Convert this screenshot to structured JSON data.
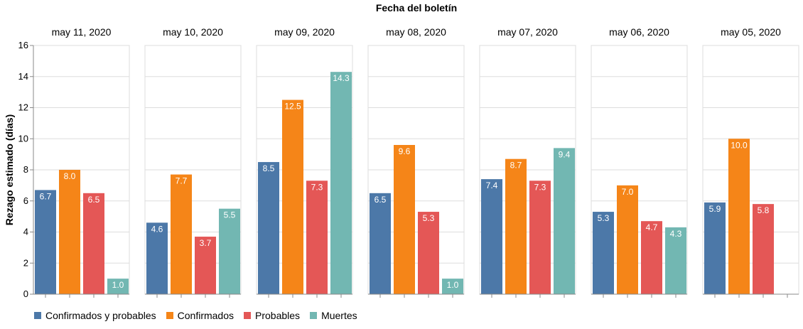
{
  "chart_data": {
    "type": "bar",
    "title": "Fecha del boletín",
    "ylabel": "Rezago estimado (días)",
    "ylim": [
      0,
      16
    ],
    "yticks": [
      0,
      2,
      4,
      6,
      8,
      10,
      12,
      14,
      16
    ],
    "grid": true,
    "legend_position": "bottom-left",
    "series": [
      {
        "name": "Confirmados y probables",
        "color": "#4c78a8"
      },
      {
        "name": "Confirmados",
        "color": "#f58518"
      },
      {
        "name": "Probables",
        "color": "#e45756"
      },
      {
        "name": "Muertes",
        "color": "#72b7b2"
      }
    ],
    "facets": [
      {
        "label": "may 11, 2020",
        "values": [
          6.7,
          8.0,
          6.5,
          1.0
        ]
      },
      {
        "label": "may 10, 2020",
        "values": [
          4.6,
          7.7,
          3.7,
          5.5
        ]
      },
      {
        "label": "may 09, 2020",
        "values": [
          8.5,
          12.5,
          7.3,
          14.3
        ]
      },
      {
        "label": "may 08, 2020",
        "values": [
          6.5,
          9.6,
          5.3,
          1.0
        ]
      },
      {
        "label": "may 07, 2020",
        "values": [
          7.4,
          8.7,
          7.3,
          9.4
        ]
      },
      {
        "label": "may 06, 2020",
        "values": [
          5.3,
          7.0,
          4.7,
          4.3
        ]
      },
      {
        "label": "may 05, 2020",
        "values": [
          5.9,
          10.0,
          5.8,
          null
        ]
      }
    ]
  }
}
